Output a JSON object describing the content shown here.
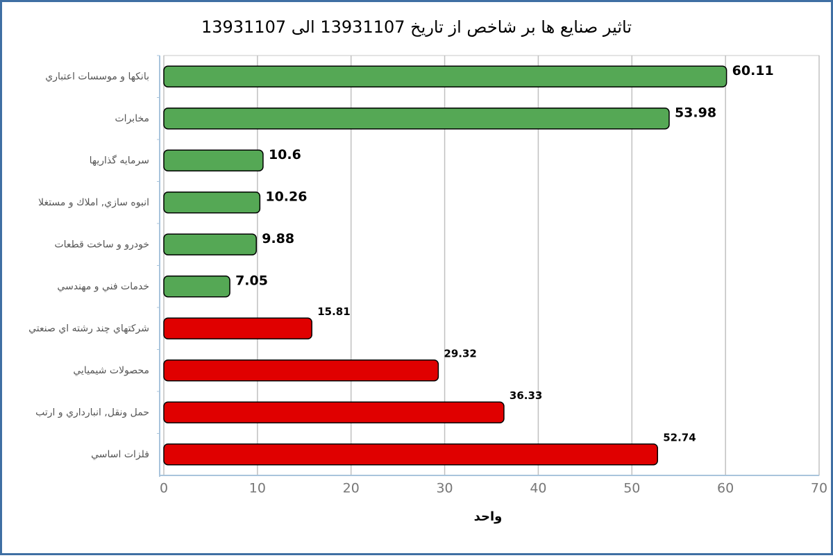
{
  "chart_data": {
    "type": "hbar",
    "title": "تاثير صنايع ها بر شاخص از تاريخ 13931107 الى 13931107",
    "x_label": "واحد",
    "categories": [
      "بانکها و موسسات اعتباري",
      "مخابرات",
      "سرمايه گذاريها",
      "انبوه سازي, املاك و مستغلا",
      "خودرو و ساخت قطعات",
      "خدمات فني و مهندسي",
      "شركتهاي چند رشته اي صنعتي",
      "محصولات شيميايي",
      "حمل ونقل, انبارداري و ارتب",
      "فلزات اساسي"
    ],
    "values": [
      60.11,
      53.98,
      10.6,
      10.26,
      9.88,
      7.05,
      15.81,
      29.32,
      36.33,
      52.74
    ],
    "colors": [
      "#55a855",
      "#55a855",
      "#55a855",
      "#55a855",
      "#55a855",
      "#55a855",
      "#e00000",
      "#e00000",
      "#e00000",
      "#e00000"
    ],
    "xlim": [
      0,
      70
    ],
    "xticks": [
      0,
      10,
      20,
      30,
      40,
      50,
      60,
      70
    ],
    "grid": true
  }
}
